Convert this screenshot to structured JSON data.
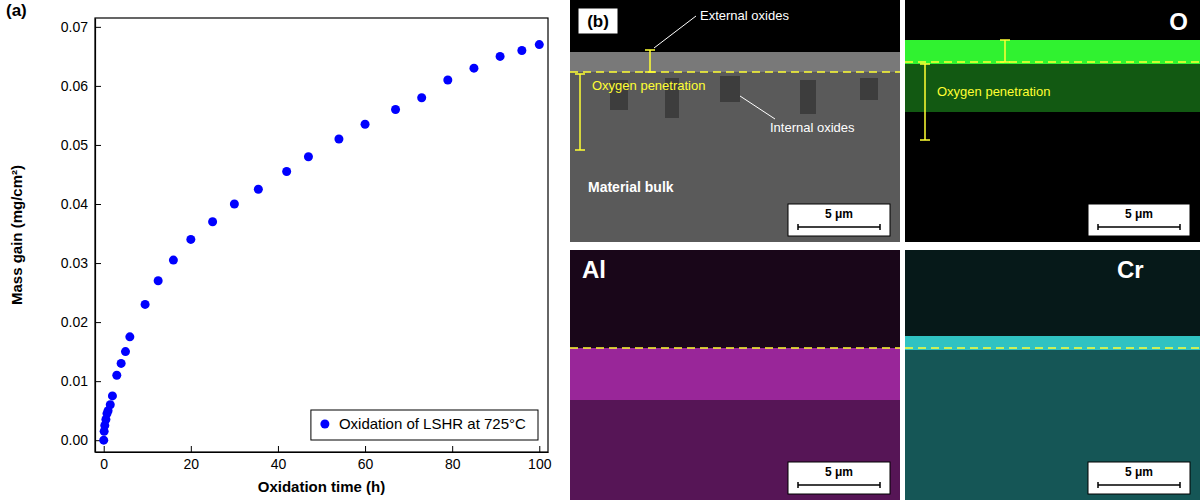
{
  "chart_data": {
    "type": "scatter",
    "title": "(a)",
    "x_label": "Oxidation time (h)",
    "y_label": "Mass gain (mg/cm²)",
    "x": [
      0,
      0.1,
      0.25,
      0.5,
      0.75,
      1,
      1.5,
      2,
      3,
      4,
      5,
      6,
      9.5,
      12.5,
      16,
      20,
      25,
      30,
      35.5,
      42,
      47,
      54,
      60,
      67,
      73,
      79,
      85,
      91,
      96,
      100
    ],
    "series": [
      {
        "name": "Oxidation of LSHR at 725°C",
        "color": "#0000ff",
        "marker": "circle",
        "values": [
          0,
          0.0015,
          0.0025,
          0.0035,
          0.0045,
          0.005,
          0.006,
          0.0075,
          0.011,
          0.013,
          0.015,
          0.0175,
          0.023,
          0.027,
          0.0305,
          0.034,
          0.037,
          0.04,
          0.0425,
          0.0455,
          0.048,
          0.051,
          0.0535,
          0.056,
          0.058,
          0.061,
          0.063,
          0.065,
          0.066,
          0.067
        ]
      }
    ],
    "xlim": [
      -2,
      102
    ],
    "ylim": [
      -0.002,
      0.0715
    ],
    "xticks": [
      0,
      20,
      40,
      60,
      80,
      100
    ],
    "yticks": [
      {
        "value": 0,
        "label": "0.00"
      },
      {
        "value": 0.01,
        "label": "0.01"
      },
      {
        "value": 0.02,
        "label": "0.02"
      },
      {
        "value": 0.03,
        "label": "0.03"
      },
      {
        "value": 0.04,
        "label": "0.04"
      },
      {
        "value": 0.05,
        "label": "0.05"
      },
      {
        "value": 0.06,
        "label": "0.06"
      },
      {
        "value": 0.07,
        "label": "0.07"
      }
    ],
    "grid": false,
    "legend": "lower right"
  },
  "micrograph": {
    "label": "(b)",
    "panels": [
      {
        "color": "#808080",
        "annotations": [
          "External oxides",
          "Oxygen penetration",
          "Internal oxides"
        ],
        "region_label": "Material bulk",
        "scale_bar": "5 μm"
      },
      {
        "title": "O",
        "color": "#33ff33",
        "annotations": [
          "Oxygen penetration"
        ],
        "scale_bar": "5 μm"
      },
      {
        "title": "Al",
        "color": "#cc33cc",
        "scale_bar": "5 μm"
      },
      {
        "title": "Cr",
        "color": "#33cccc",
        "scale_bar": "5 μm"
      }
    ]
  }
}
